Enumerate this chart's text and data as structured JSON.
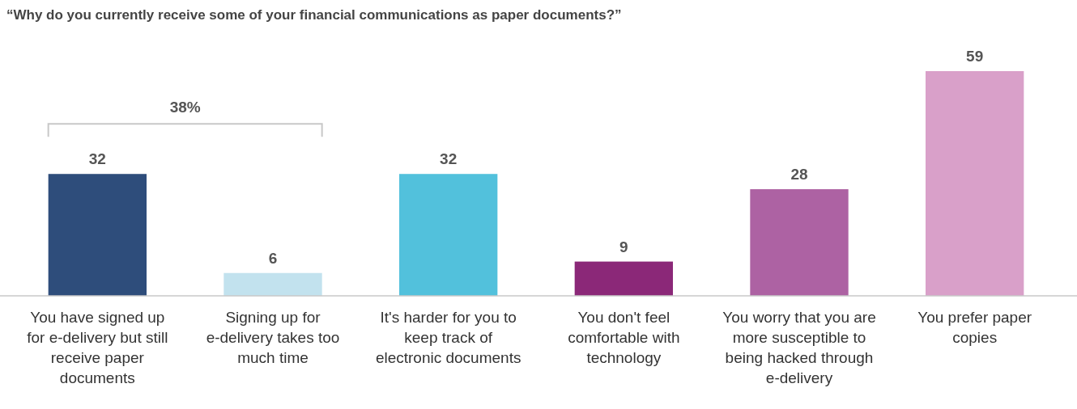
{
  "chart_data": {
    "type": "bar",
    "title": "“Why do you currently receive some of your financial communications as paper documents?”",
    "categories": [
      "You have signed up for e-delivery but still receive paper documents",
      "Signing up for e-delivery takes too much time",
      "It's harder for you to keep track of electronic documents",
      "You don't feel comfortable with technology",
      "You worry that you are more susceptible to being hacked through e-delivery",
      "You prefer paper copies"
    ],
    "values": [
      32,
      6,
      32,
      9,
      28,
      59
    ],
    "colors": [
      "#2e4d7b",
      "#c2e2ee",
      "#52c1dc",
      "#8b2878",
      "#ad62a3",
      "#d9a0c9"
    ],
    "data_labels": true,
    "annotations": [
      "38%"
    ]
  }
}
